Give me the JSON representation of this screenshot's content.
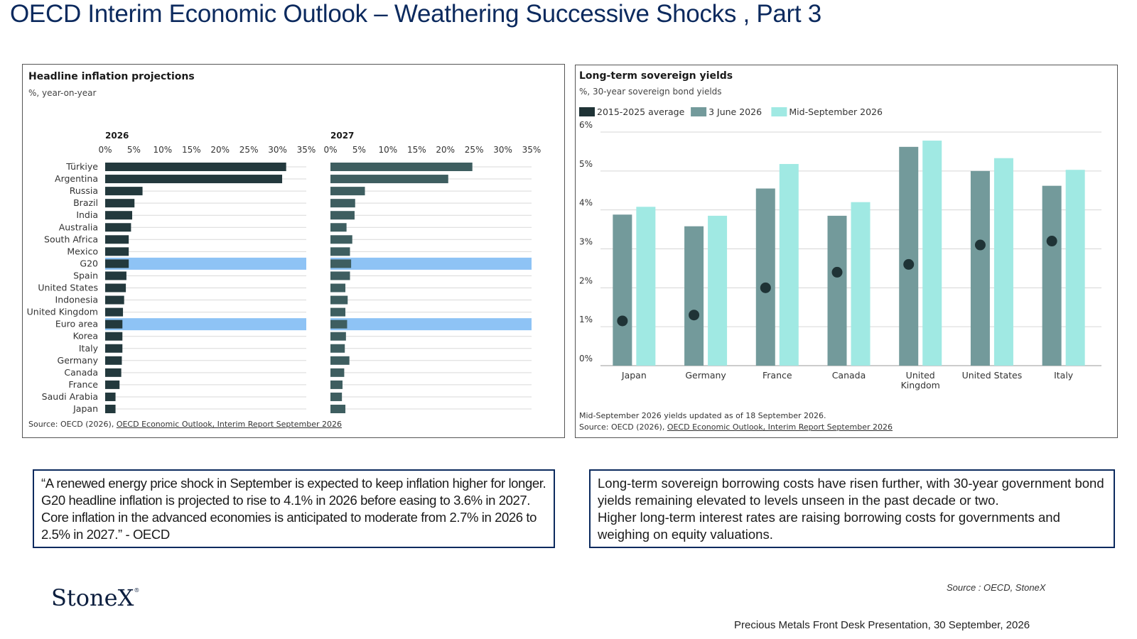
{
  "page": {
    "title": "OECD Interim Economic Outlook – Weathering Successive Shocks , Part 3"
  },
  "left_panel": {
    "title": "Headline inflation projections",
    "subtitle": "%, year-on-year",
    "source_prefix": "Source: OECD (2026), ",
    "source_link": "OECD Economic Outlook, Interim Report September 2026"
  },
  "right_panel": {
    "title": "Long-term sovereign yields",
    "subtitle": "%, 30-year sovereign bond yields",
    "note": "Mid-September 2026 yields updated as of 18 September 2026.",
    "source_prefix": "Source: OECD (2026), ",
    "source_link": "OECD Economic Outlook, Interim Report September 2026"
  },
  "chart_data": [
    {
      "type": "bar",
      "orientation": "horizontal",
      "title": "Headline inflation projections",
      "subtitle": "%, year-on-year",
      "categories": [
        "Türkiye",
        "Argentina",
        "Russia",
        "Brazil",
        "India",
        "Australia",
        "South Africa",
        "Mexico",
        "G20",
        "Spain",
        "United States",
        "Indonesia",
        "United Kingdom",
        "Euro area",
        "Korea",
        "Italy",
        "Germany",
        "Canada",
        "France",
        "Saudi Arabia",
        "Japan"
      ],
      "highlighted": [
        "G20",
        "Euro area"
      ],
      "xlim": [
        0,
        35
      ],
      "ticks": [
        "0%",
        "5%",
        "10%",
        "15%",
        "20%",
        "25%",
        "30%",
        "35%"
      ],
      "tick_values": [
        0,
        5,
        10,
        15,
        20,
        25,
        30,
        35
      ],
      "series": [
        {
          "name": "2026",
          "color": "#23393d",
          "values": [
            31.5,
            30.8,
            6.5,
            5.1,
            4.7,
            4.5,
            4.1,
            4.1,
            4.1,
            3.7,
            3.6,
            3.3,
            3.1,
            3.0,
            3.0,
            3.0,
            2.9,
            2.8,
            2.5,
            1.8,
            1.8
          ]
        },
        {
          "name": "2027",
          "color": "#3e5e60",
          "values": [
            24.7,
            20.5,
            6.0,
            4.3,
            4.2,
            2.8,
            3.8,
            3.4,
            3.6,
            3.4,
            2.6,
            3.0,
            2.6,
            2.9,
            2.7,
            2.5,
            3.3,
            2.4,
            2.1,
            2.0,
            2.6
          ]
        }
      ],
      "highlight_color": "#8ec3f5"
    },
    {
      "type": "bar",
      "title": "Long-term sovereign yields",
      "subtitle": "%, 30-year sovereign bond yields",
      "categories": [
        "Japan",
        "Germany",
        "France",
        "Canada",
        "United Kingdom",
        "United States",
        "Italy"
      ],
      "category_lines": [
        [
          "Japan"
        ],
        [
          "Germany"
        ],
        [
          "France"
        ],
        [
          "Canada"
        ],
        [
          "United",
          "Kingdom"
        ],
        [
          "United States"
        ],
        [
          "Italy"
        ]
      ],
      "ylim": [
        0,
        6
      ],
      "ticks": [
        "0%",
        "1%",
        "2%",
        "3%",
        "4%",
        "5%",
        "6%"
      ],
      "tick_values": [
        0,
        1,
        2,
        3,
        4,
        5,
        6
      ],
      "legend_position": "top-left",
      "series": [
        {
          "name": "2015-2025 average",
          "kind": "dot",
          "color": "#1f3336",
          "values": [
            1.15,
            1.3,
            2.0,
            2.4,
            2.6,
            3.1,
            3.2
          ]
        },
        {
          "name": "3 June 2026",
          "kind": "bar",
          "color": "#739a9b",
          "values": [
            3.88,
            3.58,
            4.55,
            3.85,
            5.62,
            5.0,
            4.62
          ]
        },
        {
          "name": "Mid-September 2026",
          "kind": "bar",
          "color": "#a0e9e3",
          "values": [
            4.08,
            3.85,
            5.18,
            4.2,
            5.78,
            5.33,
            5.03
          ]
        }
      ],
      "grid": true
    }
  ],
  "quotes": {
    "left": "“A renewed energy price shock in September is expected to keep inflation higher for longer. G20 headline inflation is projected to rise to 4.1% in 2026 before easing to 3.6% in 2027. Core inflation in the advanced economies is anticipated to moderate from 2.7% in 2026 to 2.5% in 2027.” - OECD",
    "right_line1": "Long-term sovereign borrowing costs have risen further, with 30-year government bond yields remaining elevated to levels unseen in the past decade or two.",
    "right_line2": "Higher long-term interest rates are raising borrowing costs for governments and weighing on equity valuations."
  },
  "branding": {
    "logo": "StoneX",
    "logo_mark": "®"
  },
  "source_note": "Source : OECD, StoneX",
  "footer": "Precious Metals Front Desk Presentation, 30 September, 2026"
}
